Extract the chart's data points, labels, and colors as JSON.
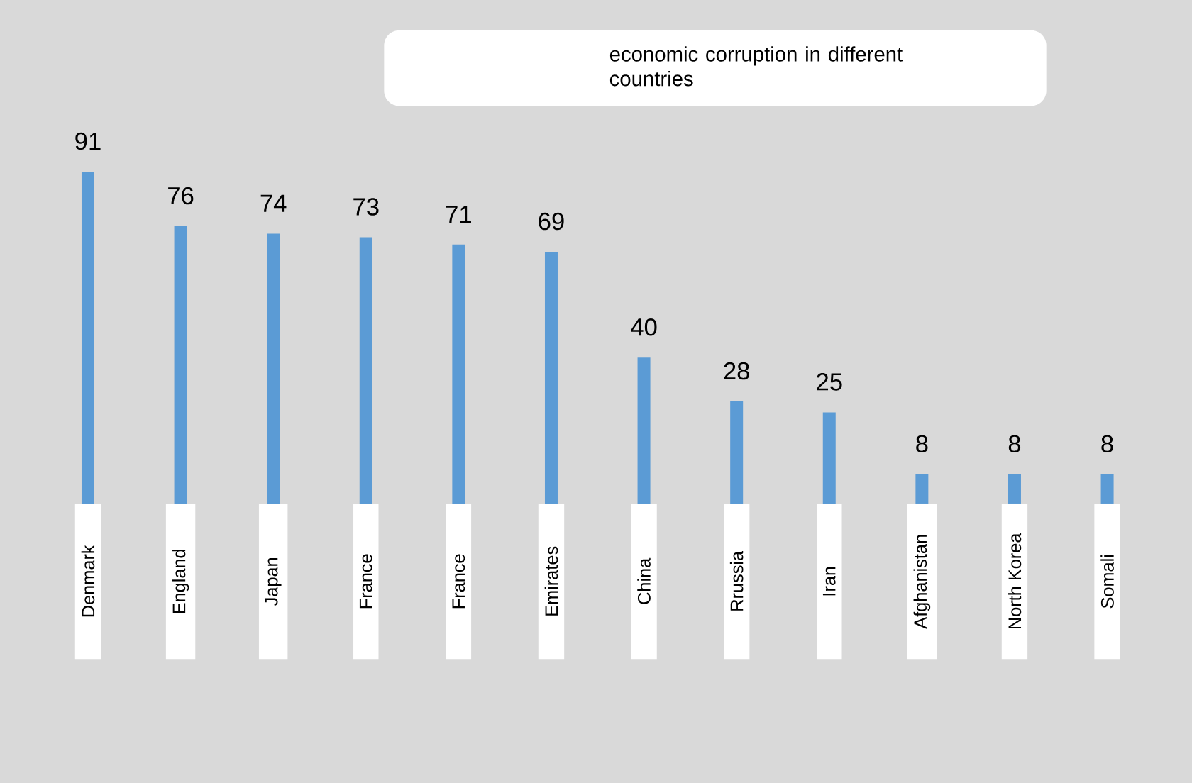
{
  "chart_data": {
    "type": "bar",
    "title": "economic corruption in different countries",
    "categories": [
      "Denmark",
      "England",
      "Japan",
      "France",
      "France",
      "Emirates",
      "China",
      "Rrussia",
      "Iran",
      "Afghanistan",
      "North Korea",
      "Somali"
    ],
    "values": [
      91,
      76,
      74,
      73,
      71,
      69,
      40,
      28,
      25,
      8,
      8,
      8
    ],
    "color": "#5b9bd5",
    "data_labels": true
  }
}
